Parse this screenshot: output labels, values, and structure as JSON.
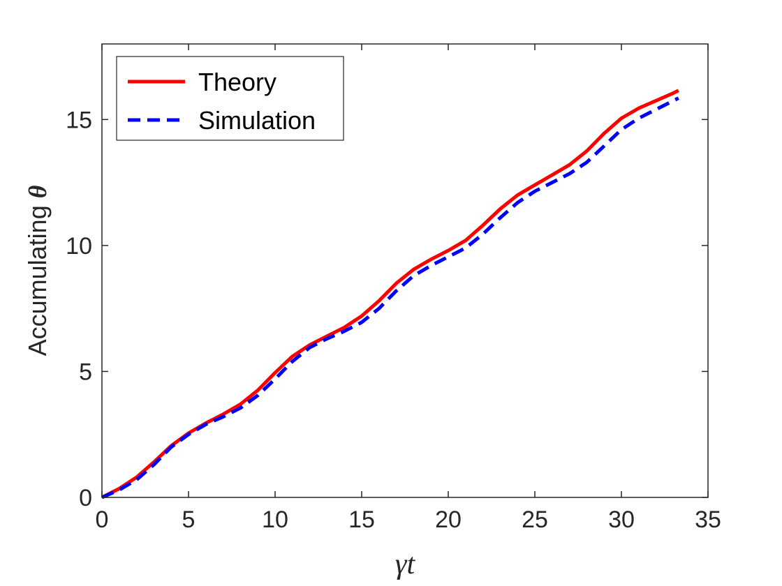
{
  "chart_data": {
    "type": "line",
    "xlabel_prefix": "",
    "xlabel": "γt",
    "ylabel": "Accumulating",
    "ylabel_symbol": "θ",
    "xlim": [
      0,
      35
    ],
    "ylim": [
      0,
      18
    ],
    "xticks": [
      0,
      5,
      10,
      15,
      20,
      25,
      30,
      35
    ],
    "yticks": [
      0,
      5,
      10,
      15
    ],
    "legend_position": "top-left",
    "grid": false,
    "series": [
      {
        "name": "Theory",
        "color": "#ff0000",
        "style": "solid",
        "x": [
          0,
          1,
          2,
          3,
          4,
          5,
          6,
          7,
          8,
          9,
          10,
          11,
          12,
          13,
          14,
          15,
          16,
          17,
          18,
          19,
          20,
          21,
          22,
          23,
          24,
          25,
          26,
          27,
          28,
          29,
          30,
          31,
          32,
          33,
          33.3
        ],
        "y": [
          0,
          0.35,
          0.8,
          1.4,
          2.05,
          2.55,
          2.95,
          3.3,
          3.7,
          4.25,
          4.95,
          5.6,
          6.05,
          6.4,
          6.75,
          7.2,
          7.8,
          8.5,
          9.05,
          9.45,
          9.8,
          10.2,
          10.8,
          11.45,
          12.0,
          12.4,
          12.8,
          13.2,
          13.75,
          14.45,
          15.05,
          15.45,
          15.75,
          16.05,
          16.15
        ]
      },
      {
        "name": "Simulation",
        "color": "#0000ff",
        "style": "dashed",
        "x": [
          0,
          1,
          2,
          3,
          4,
          5,
          6,
          7,
          8,
          9,
          10,
          11,
          12,
          13,
          14,
          15,
          16,
          17,
          18,
          19,
          20,
          21,
          22,
          23,
          24,
          25,
          26,
          27,
          28,
          29,
          30,
          31,
          32,
          33,
          33.3
        ],
        "y": [
          0,
          0.3,
          0.7,
          1.3,
          2.0,
          2.5,
          2.9,
          3.2,
          3.55,
          4.05,
          4.7,
          5.4,
          5.95,
          6.3,
          6.6,
          6.95,
          7.5,
          8.2,
          8.8,
          9.2,
          9.55,
          9.9,
          10.45,
          11.1,
          11.7,
          12.15,
          12.5,
          12.85,
          13.3,
          13.95,
          14.6,
          15.05,
          15.4,
          15.75,
          15.85
        ]
      }
    ]
  }
}
